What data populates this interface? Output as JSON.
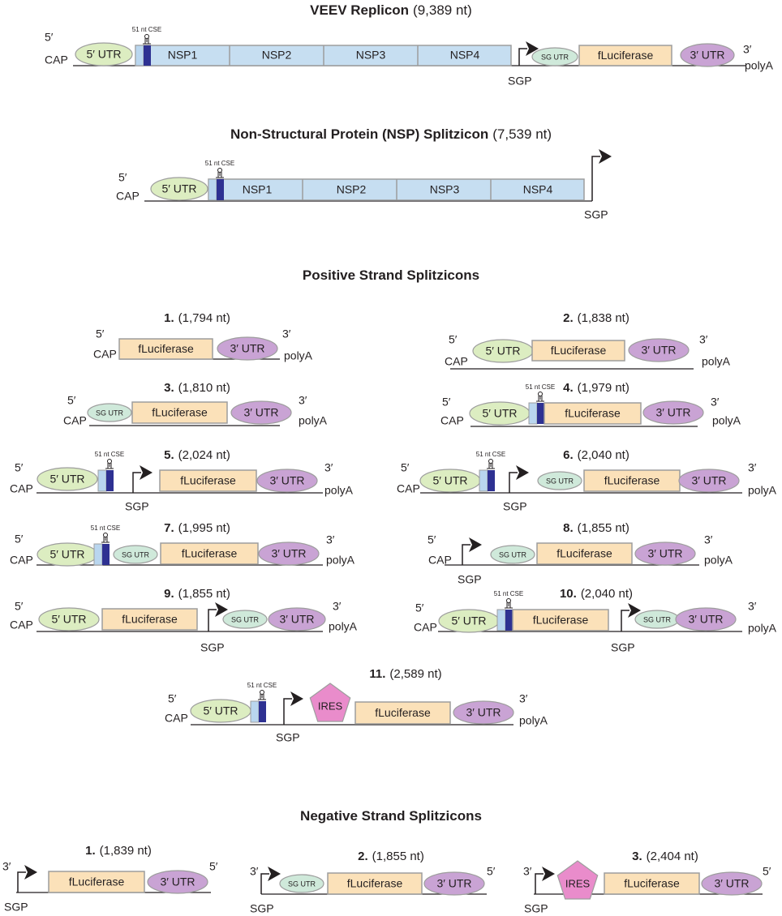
{
  "replicon": {
    "title": "VEEV Replicon",
    "length": "(9,389 nt)",
    "labels": [
      "5′",
      "CAP",
      "5′ UTR",
      "51 nt CSE",
      "NSP1",
      "NSP2",
      "NSP3",
      "NSP4",
      "SGP",
      "SG UTR",
      "fLuciferase",
      "3′ UTR",
      "3′",
      "polyA"
    ]
  },
  "nsp_splitzicon": {
    "title": "Non-Structural Protein (NSP) Splitzicon",
    "length": "(7,539 nt)",
    "labels": [
      "5′",
      "CAP",
      "5′ UTR",
      "51 nt CSE",
      "NSP1",
      "NSP2",
      "NSP3",
      "NSP4",
      "SGP"
    ]
  },
  "positive": {
    "title": "Positive Strand Splitzicons",
    "constructs": [
      {
        "number": "1.",
        "length": "(1,794 nt)",
        "labels": [
          "5′",
          "CAP",
          "fLuciferase",
          "3′ UTR",
          "3′",
          "polyA"
        ]
      },
      {
        "number": "2.",
        "length": "(1,838 nt)",
        "labels": [
          "5′",
          "CAP",
          "5′ UTR",
          "fLuciferase",
          "3′ UTR",
          "3′",
          "polyA"
        ]
      },
      {
        "number": "3.",
        "length": "(1,810 nt)",
        "labels": [
          "5′",
          "CAP",
          "SG UTR",
          "fLuciferase",
          "3′ UTR",
          "3′",
          "polyA"
        ]
      },
      {
        "number": "4.",
        "length": "(1,979 nt)",
        "labels": [
          "5′",
          "CAP",
          "5′ UTR",
          "51 nt CSE",
          "fLuciferase",
          "3′ UTR",
          "3′",
          "polyA"
        ]
      },
      {
        "number": "5.",
        "length": "(2,024 nt)",
        "labels": [
          "5′",
          "CAP",
          "5′ UTR",
          "51 nt CSE",
          "SGP",
          "fLuciferase",
          "3′ UTR",
          "3′",
          "polyA"
        ]
      },
      {
        "number": "6.",
        "length": "(2,040 nt)",
        "labels": [
          "5′",
          "CAP",
          "5′ UTR",
          "51 nt CSE",
          "SGP",
          "SG UTR",
          "fLuciferase",
          "3′ UTR",
          "3′",
          "polyA"
        ]
      },
      {
        "number": "7.",
        "length": "(1,995 nt)",
        "labels": [
          "5′",
          "CAP",
          "5′ UTR",
          "51 nt CSE",
          "SG UTR",
          "fLuciferase",
          "3′ UTR",
          "3′",
          "polyA"
        ]
      },
      {
        "number": "8.",
        "length": "(1,855 nt)",
        "labels": [
          "5′",
          "CAP",
          "SGP",
          "SG UTR",
          "fLuciferase",
          "3′ UTR",
          "3′",
          "polyA"
        ]
      },
      {
        "number": "9.",
        "length": "(1,855 nt)",
        "labels": [
          "5′",
          "CAP",
          "5′ UTR",
          "fLuciferase",
          "SGP",
          "SG UTR",
          "3′ UTR",
          "3′",
          "polyA"
        ]
      },
      {
        "number": "10.",
        "length": "(2,040 nt)",
        "labels": [
          "5′",
          "CAP",
          "5′ UTR",
          "51 nt CSE",
          "fLuciferase",
          "SGP",
          "SG UTR",
          "3′ UTR",
          "3′",
          "polyA"
        ]
      },
      {
        "number": "11.",
        "length": "(2,589 nt)",
        "labels": [
          "5′",
          "CAP",
          "5′ UTR",
          "51 nt CSE",
          "SGP",
          "IRES",
          "fLuciferase",
          "3′ UTR",
          "3′",
          "polyA"
        ]
      }
    ]
  },
  "negative": {
    "title": "Negative Strand Splitzicons",
    "constructs": [
      {
        "number": "1.",
        "length": "(1,839 nt)",
        "labels": [
          "3′",
          "SGP",
          "fLuciferase",
          "3′ UTR",
          "5′"
        ]
      },
      {
        "number": "2.",
        "length": "(1,855 nt)",
        "labels": [
          "3′",
          "SGP",
          "SG UTR",
          "fLuciferase",
          "3′ UTR",
          "5′"
        ]
      },
      {
        "number": "3.",
        "length": "(2,404 nt)",
        "labels": [
          "3′",
          "SGP",
          "IRES",
          "fLuciferase",
          "3′ UTR",
          "5′"
        ]
      }
    ]
  }
}
